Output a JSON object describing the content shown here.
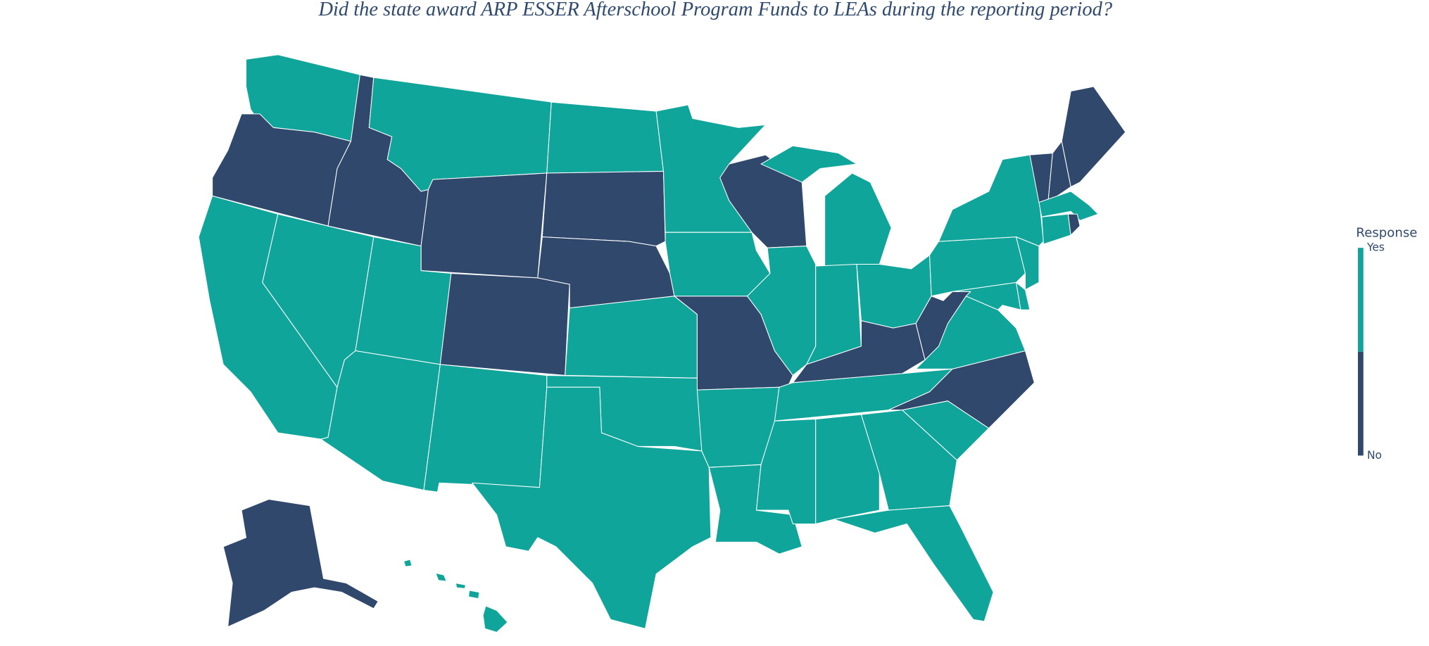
{
  "chart_data": {
    "type": "choropleth",
    "title": "Did the state award ARP ESSER Afterschool Program Funds to LEAs during the reporting period?",
    "colorbar_title": "Response",
    "values": [
      1,
      0,
      1,
      1,
      0,
      1,
      0,
      1,
      1,
      0,
      1,
      1,
      0,
      0,
      1,
      1,
      1,
      1,
      1,
      0,
      1,
      1,
      0,
      1,
      1,
      1,
      1,
      0,
      1,
      1,
      1,
      1,
      1,
      1,
      0,
      1,
      0,
      1,
      1,
      1,
      1,
      1,
      0,
      0,
      0,
      1,
      1,
      0,
      0,
      1
    ],
    "zlim": [
      0,
      1
    ],
    "zticks": [
      {
        "value": 1,
        "label": "Yes"
      },
      {
        "value": 0,
        "label": "No"
      }
    ],
    "colors": [
      "#30486c",
      "#10a59b"
    ]
  }
}
